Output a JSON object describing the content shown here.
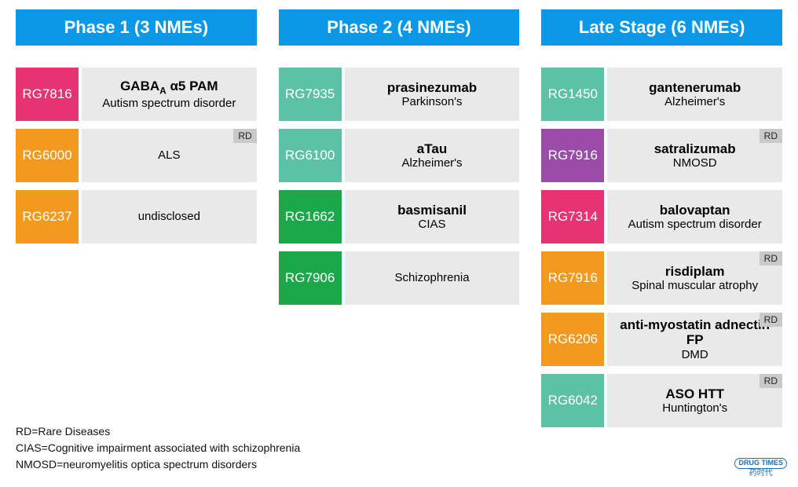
{
  "colors": {
    "header_bg": "#0b98e6",
    "row_bg": "#e9e9e9",
    "badge_bg": "#c9c9c9",
    "pink": "#e63472",
    "orange": "#f39a1e",
    "teal": "#5bc1a7",
    "green": "#1aa84a",
    "purple": "#9a4ca8"
  },
  "columns": [
    {
      "header": "Phase 1 (3 NMEs)",
      "items": [
        {
          "code": "RG7816",
          "color": "pink",
          "title_html": "GABA<sub>A</sub> α5 PAM",
          "sub": "Autism spectrum disorder",
          "rd": false
        },
        {
          "code": "RG6000",
          "color": "orange",
          "title_html": "",
          "sub": "ALS",
          "rd": true
        },
        {
          "code": "RG6237",
          "color": "orange",
          "title_html": "",
          "sub": "undisclosed",
          "rd": false
        }
      ]
    },
    {
      "header": "Phase 2 (4 NMEs)",
      "items": [
        {
          "code": "RG7935",
          "color": "teal",
          "title_html": "prasinezumab",
          "sub": "Parkinson's",
          "rd": false
        },
        {
          "code": "RG6100",
          "color": "teal",
          "title_html": "aTau",
          "sub": "Alzheimer's",
          "rd": false
        },
        {
          "code": "RG1662",
          "color": "green",
          "title_html": "basmisanil",
          "sub": "CIAS",
          "rd": false
        },
        {
          "code": "RG7906",
          "color": "green",
          "title_html": "",
          "sub": "Schizophrenia",
          "rd": false
        }
      ]
    },
    {
      "header": "Late Stage (6 NMEs)",
      "items": [
        {
          "code": "RG1450",
          "color": "teal",
          "title_html": "gantenerumab",
          "sub": "Alzheimer's",
          "rd": false
        },
        {
          "code": "RG7916",
          "color": "purple",
          "title_html": "satralizumab",
          "sub": "NMOSD",
          "rd": true
        },
        {
          "code": "RG7314",
          "color": "pink",
          "title_html": "balovaptan",
          "sub": "Autism spectrum disorder",
          "rd": false
        },
        {
          "code": "RG7916",
          "color": "orange",
          "title_html": "risdiplam",
          "sub": "Spinal muscular atrophy",
          "rd": true
        },
        {
          "code": "RG6206",
          "color": "orange",
          "title_html": "anti-myostatin adnectin FP",
          "sub": "DMD",
          "rd": true
        },
        {
          "code": "RG6042",
          "color": "teal",
          "title_html": "ASO HTT",
          "sub": "Huntington's",
          "rd": true
        }
      ]
    }
  ],
  "rd_label": "RD",
  "legend": [
    "RD=Rare Diseases",
    "CIAS=Cognitive impairment associated with schizophrenia",
    "NMOSD=neuromyelitis optica spectrum disorders"
  ],
  "watermark": {
    "pill": "DRUG TIMES",
    "sub": "药时代"
  }
}
